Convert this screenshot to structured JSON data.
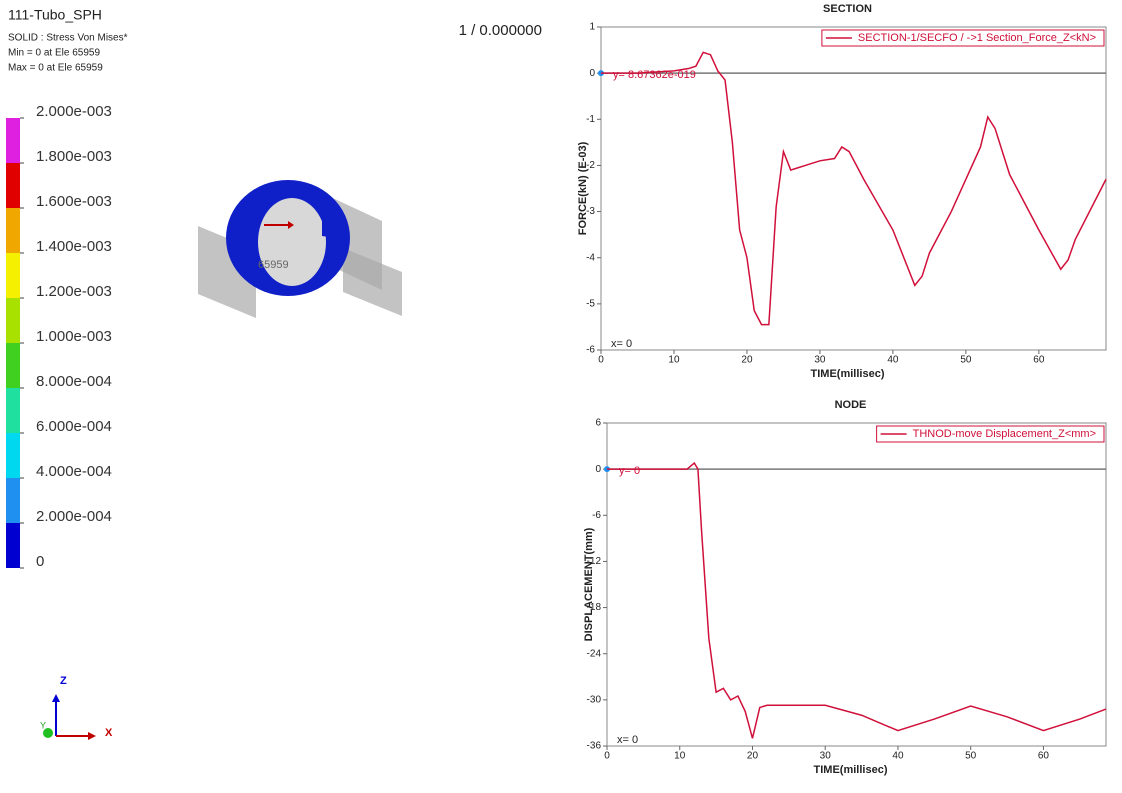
{
  "model": {
    "title": "111-Tubo_SPH",
    "result": "SOLID : Stress Von Mises*",
    "min": "Min = 0 at Ele 65959",
    "max": "Max = 0 at Ele 65959",
    "state": "1 / 0.000000",
    "element_label": "65959",
    "axes": {
      "z": "Z",
      "y": "Y",
      "x": "X"
    }
  },
  "colorbar": {
    "labels": [
      "2.000e-003",
      "1.800e-003",
      "1.600e-003",
      "1.400e-003",
      "1.200e-003",
      "1.000e-003",
      "8.000e-004",
      "6.000e-004",
      "4.000e-004",
      "2.000e-004",
      "0"
    ],
    "colors": [
      "#e020e0",
      "#e00000",
      "#f0a800",
      "#f4f000",
      "#a8e000",
      "#40d020",
      "#20e0a0",
      "#00d8f0",
      "#2090f0",
      "#0000d0"
    ]
  },
  "chart_data": [
    {
      "type": "line",
      "title": "SECTION",
      "x_label": "TIME(millisec)",
      "y_label": "FORCE(kN) (E-03)",
      "annotations": [
        "y= 8.67362e-019",
        "x= 0"
      ],
      "legend": "upper right",
      "zero_line": true,
      "xlim": [
        0,
        69.2
      ],
      "xticks": [
        0,
        10,
        20,
        30,
        40,
        50,
        60
      ],
      "ylim": [
        -6,
        1
      ],
      "yticks": [
        -6,
        -5,
        -4,
        -3,
        -2,
        -1,
        0,
        1
      ],
      "x": [
        0,
        5,
        10,
        12,
        13,
        14,
        15,
        16,
        17,
        18,
        19,
        20,
        21,
        22,
        23,
        24,
        25,
        26,
        27,
        28,
        30,
        32,
        33,
        34,
        36,
        40,
        43,
        44,
        45,
        48,
        52,
        53,
        54,
        56,
        60,
        63,
        64,
        65,
        69.2
      ],
      "series": [
        {
          "name": "SECTION-1/SECFO / ->1 Section_Force_Z<kN>",
          "color": "#d0103a",
          "values": [
            0,
            0,
            0.05,
            0.1,
            0.15,
            0.45,
            0.4,
            0.05,
            -0.15,
            -1.5,
            -3.4,
            -4.0,
            -5.15,
            -5.45,
            -5.45,
            -2.9,
            -1.7,
            -2.1,
            -2.05,
            -2.0,
            -1.9,
            -1.85,
            -1.6,
            -1.7,
            -2.3,
            -3.4,
            -4.6,
            -4.4,
            -3.9,
            -3.0,
            -1.6,
            -0.95,
            -1.2,
            -2.2,
            -3.4,
            -4.25,
            -4.05,
            -3.6,
            -2.3
          ]
        }
      ]
    },
    {
      "type": "line",
      "title": "NODE",
      "x_label": "TIME(millisec)",
      "y_label": "DISPLACEMENT(mm)",
      "annotations": [
        "y= 0",
        "x= 0"
      ],
      "legend": "upper right",
      "zero_line": true,
      "xlim": [
        0,
        68.6
      ],
      "xticks": [
        0,
        10,
        20,
        30,
        40,
        50,
        60
      ],
      "ylim": [
        -36,
        6
      ],
      "yticks": [
        -36,
        -30,
        -24,
        -18,
        -12,
        -6,
        0,
        6
      ],
      "x": [
        0,
        5,
        10,
        11,
        12,
        12.5,
        13,
        14,
        15,
        16,
        17,
        18,
        19,
        20,
        21,
        22,
        25,
        30,
        35,
        40,
        45,
        50,
        55,
        60,
        65,
        68.6
      ],
      "series": [
        {
          "name": "THNOD-move Displacement_Z<mm>",
          "color": "#d0103a",
          "values": [
            0,
            0,
            0,
            0,
            0.8,
            0,
            -8,
            -22,
            -29,
            -28.5,
            -30,
            -29.5,
            -31.5,
            -35,
            -31,
            -30.7,
            -30.7,
            -30.7,
            -32,
            -34,
            -32.5,
            -30.8,
            -32.2,
            -34,
            -32.5,
            -31.2
          ]
        }
      ]
    }
  ]
}
